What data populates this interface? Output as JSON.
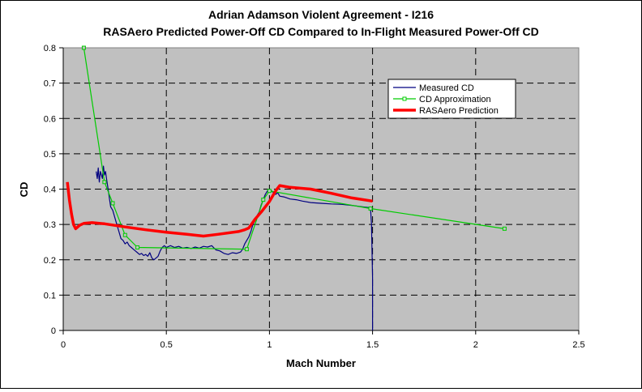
{
  "chart_data": {
    "type": "line",
    "title": "Adrian Adamson  Violent Agreement  - I216",
    "subtitle": "RASAero Predicted  Power-Off  CD Compared  to In-Flight Measured  Power-Off  CD",
    "xlabel": "Mach Number",
    "ylabel": "CD",
    "xlim": [
      0,
      2.5
    ],
    "ylim": [
      0,
      0.8
    ],
    "xticks": [
      0,
      0.5,
      1,
      1.5,
      2,
      2.5
    ],
    "xtick_labels": [
      "0",
      "0.5",
      "1",
      "1.5",
      "2",
      "2.5"
    ],
    "yticks": [
      0,
      0.1,
      0.2,
      0.3,
      0.4,
      0.5,
      0.6,
      0.7,
      0.8
    ],
    "ytick_labels": [
      "0",
      "0.1",
      "0.2",
      "0.3",
      "0.4",
      "0.5",
      "0.6",
      "0.7",
      "0.8"
    ],
    "grid": true,
    "plot_background": "#c0c0c0",
    "legend_position": "top-right",
    "series": [
      {
        "name": "Measured CD",
        "color": "#000080",
        "points": [
          [
            0.16,
            0.45
          ],
          [
            0.165,
            0.43
          ],
          [
            0.17,
            0.46
          ],
          [
            0.175,
            0.42
          ],
          [
            0.18,
            0.45
          ],
          [
            0.185,
            0.44
          ],
          [
            0.19,
            0.43
          ],
          [
            0.195,
            0.465
          ],
          [
            0.2,
            0.44
          ],
          [
            0.205,
            0.45
          ],
          [
            0.21,
            0.43
          ],
          [
            0.215,
            0.41
          ],
          [
            0.22,
            0.39
          ],
          [
            0.225,
            0.37
          ],
          [
            0.23,
            0.35
          ],
          [
            0.24,
            0.34
          ],
          [
            0.25,
            0.32
          ],
          [
            0.26,
            0.3
          ],
          [
            0.27,
            0.28
          ],
          [
            0.28,
            0.26
          ],
          [
            0.29,
            0.255
          ],
          [
            0.3,
            0.245
          ],
          [
            0.31,
            0.25
          ],
          [
            0.32,
            0.24
          ],
          [
            0.33,
            0.235
          ],
          [
            0.34,
            0.23
          ],
          [
            0.35,
            0.225
          ],
          [
            0.36,
            0.22
          ],
          [
            0.37,
            0.215
          ],
          [
            0.38,
            0.218
          ],
          [
            0.39,
            0.212
          ],
          [
            0.4,
            0.215
          ],
          [
            0.41,
            0.21
          ],
          [
            0.42,
            0.22
          ],
          [
            0.43,
            0.205
          ],
          [
            0.44,
            0.2
          ],
          [
            0.45,
            0.205
          ],
          [
            0.46,
            0.21
          ],
          [
            0.47,
            0.225
          ],
          [
            0.48,
            0.235
          ],
          [
            0.49,
            0.24
          ],
          [
            0.5,
            0.235
          ],
          [
            0.52,
            0.24
          ],
          [
            0.54,
            0.235
          ],
          [
            0.56,
            0.238
          ],
          [
            0.58,
            0.233
          ],
          [
            0.6,
            0.235
          ],
          [
            0.62,
            0.232
          ],
          [
            0.64,
            0.236
          ],
          [
            0.66,
            0.233
          ],
          [
            0.68,
            0.238
          ],
          [
            0.7,
            0.236
          ],
          [
            0.72,
            0.24
          ],
          [
            0.74,
            0.228
          ],
          [
            0.76,
            0.225
          ],
          [
            0.78,
            0.218
          ],
          [
            0.8,
            0.215
          ],
          [
            0.82,
            0.22
          ],
          [
            0.84,
            0.218
          ],
          [
            0.86,
            0.222
          ],
          [
            0.87,
            0.23
          ],
          [
            0.88,
            0.245
          ],
          [
            0.89,
            0.255
          ],
          [
            0.9,
            0.265
          ],
          [
            0.91,
            0.28
          ],
          [
            0.92,
            0.3
          ],
          [
            0.93,
            0.31
          ],
          [
            0.94,
            0.325
          ],
          [
            0.95,
            0.335
          ],
          [
            0.96,
            0.355
          ],
          [
            0.97,
            0.37
          ],
          [
            0.98,
            0.385
          ],
          [
            0.99,
            0.395
          ],
          [
            1.0,
            0.4
          ],
          [
            1.01,
            0.395
          ],
          [
            1.02,
            0.39
          ],
          [
            1.03,
            0.385
          ],
          [
            1.04,
            0.39
          ],
          [
            1.05,
            0.38
          ],
          [
            1.07,
            0.378
          ],
          [
            1.1,
            0.372
          ],
          [
            1.13,
            0.37
          ],
          [
            1.16,
            0.366
          ],
          [
            1.2,
            0.362
          ],
          [
            1.25,
            0.36
          ],
          [
            1.3,
            0.358
          ],
          [
            1.35,
            0.357
          ],
          [
            1.4,
            0.354
          ],
          [
            1.45,
            0.35
          ],
          [
            1.48,
            0.348
          ],
          [
            1.49,
            0.346
          ],
          [
            1.495,
            0.3
          ],
          [
            1.5,
            0.15
          ],
          [
            1.5,
            0.0
          ]
        ]
      },
      {
        "name": "CD Approximation",
        "color": "#00cc00",
        "points": [
          [
            0.1,
            0.8
          ],
          [
            0.2,
            0.42
          ],
          [
            0.24,
            0.36
          ],
          [
            0.3,
            0.27
          ],
          [
            0.36,
            0.235
          ],
          [
            0.89,
            0.23
          ],
          [
            0.97,
            0.37
          ],
          [
            1.0,
            0.395
          ],
          [
            1.49,
            0.345
          ],
          [
            2.14,
            0.288
          ]
        ]
      },
      {
        "name": "RASAero Prediction",
        "color": "#ff0000",
        "points": [
          [
            0.02,
            0.42
          ],
          [
            0.03,
            0.37
          ],
          [
            0.04,
            0.33
          ],
          [
            0.05,
            0.3
          ],
          [
            0.06,
            0.288
          ],
          [
            0.08,
            0.298
          ],
          [
            0.1,
            0.303
          ],
          [
            0.14,
            0.305
          ],
          [
            0.2,
            0.302
          ],
          [
            0.3,
            0.293
          ],
          [
            0.4,
            0.285
          ],
          [
            0.5,
            0.278
          ],
          [
            0.6,
            0.272
          ],
          [
            0.68,
            0.267
          ],
          [
            0.75,
            0.272
          ],
          [
            0.85,
            0.28
          ],
          [
            0.88,
            0.285
          ],
          [
            0.9,
            0.29
          ],
          [
            0.93,
            0.315
          ],
          [
            0.96,
            0.335
          ],
          [
            1.0,
            0.365
          ],
          [
            1.03,
            0.395
          ],
          [
            1.05,
            0.41
          ],
          [
            1.1,
            0.405
          ],
          [
            1.2,
            0.4
          ],
          [
            1.3,
            0.388
          ],
          [
            1.4,
            0.375
          ],
          [
            1.5,
            0.366
          ]
        ]
      }
    ]
  }
}
